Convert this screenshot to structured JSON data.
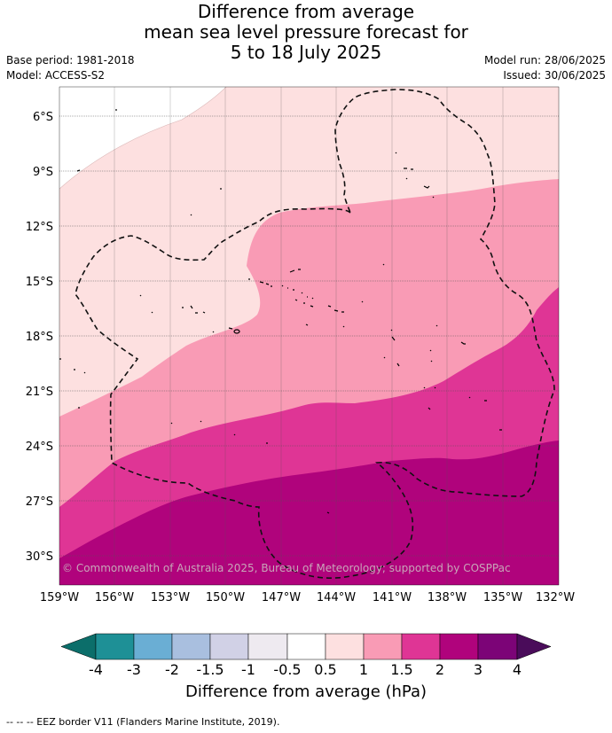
{
  "title": {
    "line1": "Difference from average",
    "line2": "mean sea level pressure forecast for",
    "line3": "5 to 18 July 2025"
  },
  "meta": {
    "base_period": "Base period: 1981-2018",
    "model": "Model: ACCESS-S2",
    "model_run": "Model run: 28/06/2025",
    "issued": "Issued: 30/06/2025"
  },
  "map": {
    "lat_labels": [
      "6°S",
      "9°S",
      "12°S",
      "15°S",
      "18°S",
      "21°S",
      "24°S",
      "27°S",
      "30°S"
    ],
    "lon_labels": [
      "159°W",
      "156°W",
      "153°W",
      "150°W",
      "147°W",
      "144°W",
      "141°W",
      "138°W",
      "135°W",
      "132°W"
    ],
    "copyright": "© Commonwealth of Australia 2025, Bureau of Meteorology; supported by COSPPac"
  },
  "colorbar": {
    "ticks": [
      "-4",
      "-3",
      "-2",
      "-1.5",
      "-1",
      "-0.5",
      "0.5",
      "1",
      "1.5",
      "2",
      "3",
      "4"
    ],
    "colors": [
      "#0b6e6a",
      "#1e9096",
      "#6aaed4",
      "#a9bfdf",
      "#d1d1e6",
      "#eeeaf0",
      "#ffffff",
      "#fde0e0",
      "#f99bb5",
      "#df3595",
      "#b0037c",
      "#7c0477",
      "#4a0c5a"
    ],
    "title": "Difference from average (hPa)"
  },
  "footer": "--  --  -- EEZ border V11 (Flanders Marine Institute, 2019)."
}
